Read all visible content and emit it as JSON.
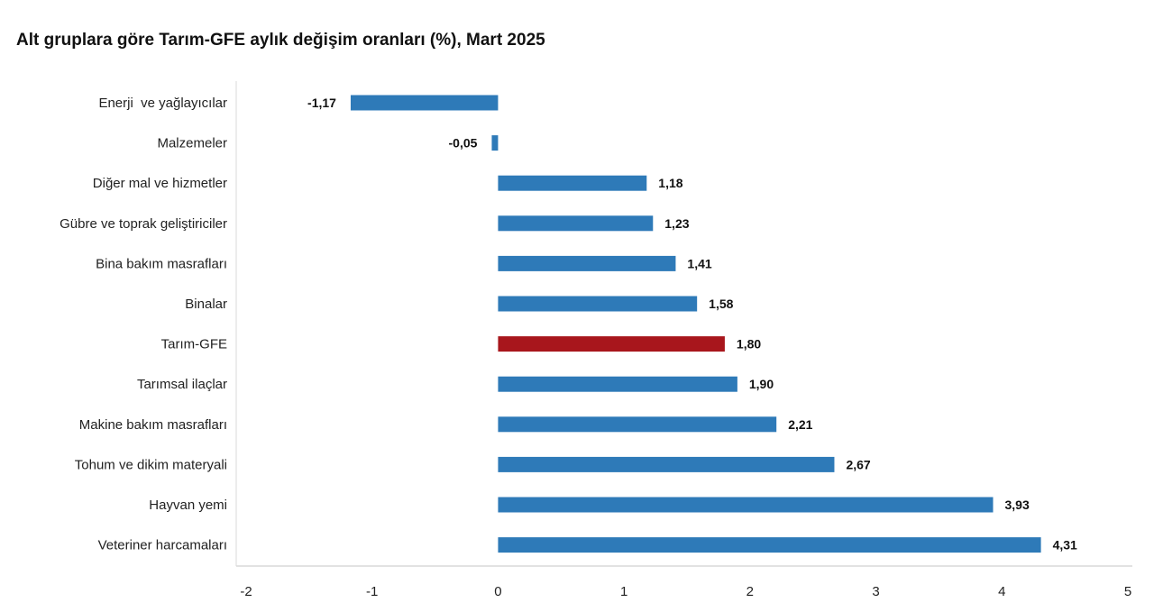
{
  "chart_data": {
    "type": "bar",
    "orientation": "horizontal",
    "title": "Alt gruplara göre Tarım-GFE aylık değişim oranları (%), Mart 2025",
    "categories": [
      "Enerji  ve yağlayıcılar",
      "Malzemeler",
      "Diğer mal ve hizmetler",
      "Gübre ve toprak geliştiriciler",
      "Bina bakım masrafları",
      "Binalar",
      "Tarım-GFE",
      "Tarımsal ilaçlar",
      "Makine bakım masrafları",
      "Tohum ve dikim materyali",
      "Hayvan yemi",
      "Veteriner harcamaları"
    ],
    "values": [
      -1.17,
      -0.05,
      1.18,
      1.23,
      1.41,
      1.58,
      1.8,
      1.9,
      2.21,
      2.67,
      3.93,
      4.31
    ],
    "value_labels": [
      "-1,17",
      "-0,05",
      "1,18",
      "1,23",
      "1,41",
      "1,58",
      "1,80",
      "1,90",
      "2,21",
      "2,67",
      "3,93",
      "4,31"
    ],
    "highlight_index": 6,
    "xlim": [
      -2,
      5
    ],
    "xticks": [
      -2,
      -1,
      0,
      1,
      2,
      3,
      4,
      5
    ],
    "xlabel": "",
    "ylabel": "",
    "grid": false,
    "colors": {
      "bar": "#2e7ab8",
      "highlight": "#a8161c",
      "axis": "#d9d9d9"
    }
  }
}
